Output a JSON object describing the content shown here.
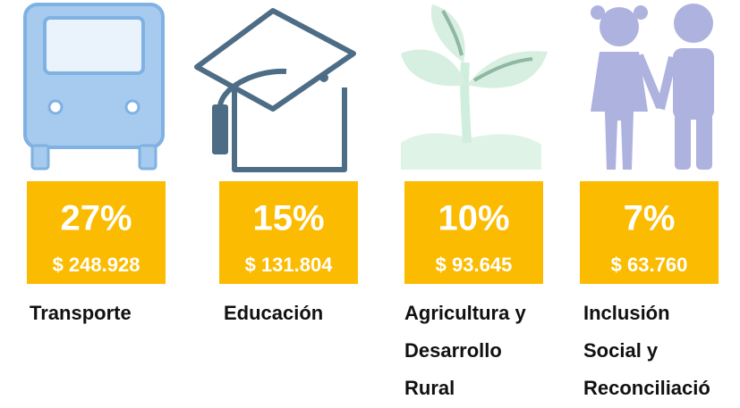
{
  "items": [
    {
      "percent": "27%",
      "amount": "$ 248.928",
      "label": [
        "Transporte"
      ]
    },
    {
      "percent": "15%",
      "amount": "$ 131.804",
      "label": [
        "Educación"
      ]
    },
    {
      "percent": "10%",
      "amount": "$ 93.645",
      "label": [
        "Agricultura y",
        "Desarrollo",
        "Rural"
      ]
    },
    {
      "percent": "7%",
      "amount": "$ 63.760",
      "label": [
        "Inclusión",
        "Social y",
        "Reconciliació"
      ]
    }
  ]
}
